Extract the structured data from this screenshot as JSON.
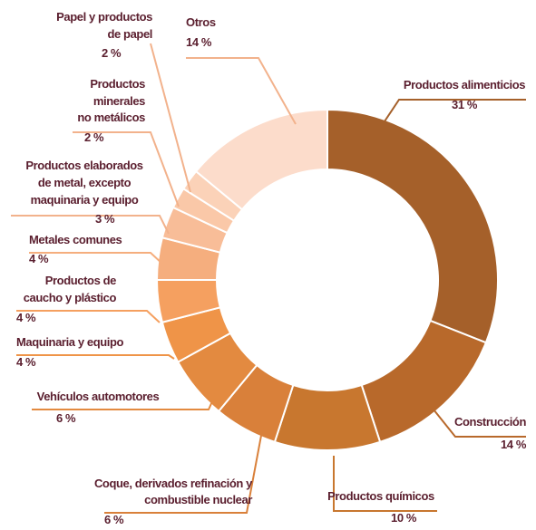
{
  "chart_data": {
    "type": "donut",
    "categories": [
      "Productos alimenticios",
      "Construcción",
      "Productos químicos",
      "Coque, derivados refinación y combustible nuclear",
      "Vehículos automotores",
      "Maquinaria y equipo",
      "Productos de caucho y plástico",
      "Metales comunes",
      "Productos elaborados de metal, excepto maquinaria y equipo",
      "Productos minerales no metálicos",
      "Papel y productos de papel",
      "Otros"
    ],
    "values": [
      31,
      14,
      10,
      6,
      6,
      4,
      4,
      4,
      3,
      2,
      2,
      14
    ],
    "value_labels": [
      "31 %",
      "14 %",
      "10 %",
      "6 %",
      "6 %",
      "4 %",
      "4 %",
      "4 %",
      "3 %",
      "2 %",
      "2 %",
      "14 %"
    ],
    "colors": [
      "#a5602a",
      "#b8692b",
      "#c8772f",
      "#d9803a",
      "#e38a40",
      "#ef9448",
      "#f5a060",
      "#f5ae7e",
      "#f8bd98",
      "#fac8a8",
      "#fbd2b8",
      "#fcdccb"
    ]
  }
}
